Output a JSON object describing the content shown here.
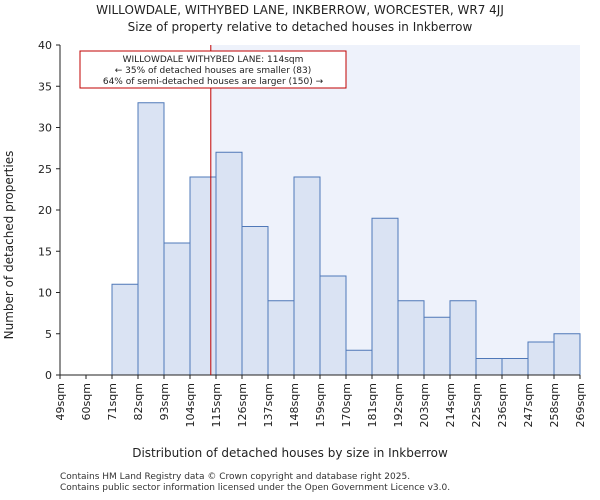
{
  "chart_data": {
    "type": "bar",
    "title": "WILLOWDALE, WITHYBED LANE, INKBERROW, WORCESTER, WR7 4JJ",
    "subtitle": "Size of property relative to detached houses in Inkberrow",
    "xlabel": "Distribution of detached houses by size in Inkberrow",
    "ylabel": "Number of detached properties",
    "ylim": [
      0,
      40
    ],
    "yticks": [
      0,
      5,
      10,
      15,
      20,
      25,
      30,
      35,
      40
    ],
    "bin_edges": [
      "49sqm",
      "60sqm",
      "71sqm",
      "82sqm",
      "93sqm",
      "104sqm",
      "115sqm",
      "126sqm",
      "137sqm",
      "148sqm",
      "159sqm",
      "170sqm",
      "181sqm",
      "192sqm",
      "203sqm",
      "214sqm",
      "225sqm",
      "236sqm",
      "247sqm",
      "258sqm",
      "269sqm"
    ],
    "values": [
      0,
      0,
      11,
      33,
      16,
      24,
      27,
      18,
      9,
      24,
      12,
      3,
      19,
      9,
      7,
      9,
      2,
      2,
      4,
      5
    ],
    "marker": {
      "value_bin_position": 5.8,
      "label": "WILLOWDALE WITHYBED LANE: 114sqm"
    },
    "annotation": [
      "WILLOWDALE WITHYBED LANE: 114sqm",
      "← 35% of detached houses are smaller (83)",
      "64% of semi-detached houses are larger (150) →"
    ],
    "colors": {
      "bar_fill": "#dae3f3",
      "bar_stroke": "#4f78b8",
      "marker": "#c00000",
      "highlight_region": "#eef2fb"
    }
  },
  "footer": {
    "line1": "Contains HM Land Registry data © Crown copyright and database right 2025.",
    "line2": "Contains public sector information licensed under the Open Government Licence v3.0."
  }
}
